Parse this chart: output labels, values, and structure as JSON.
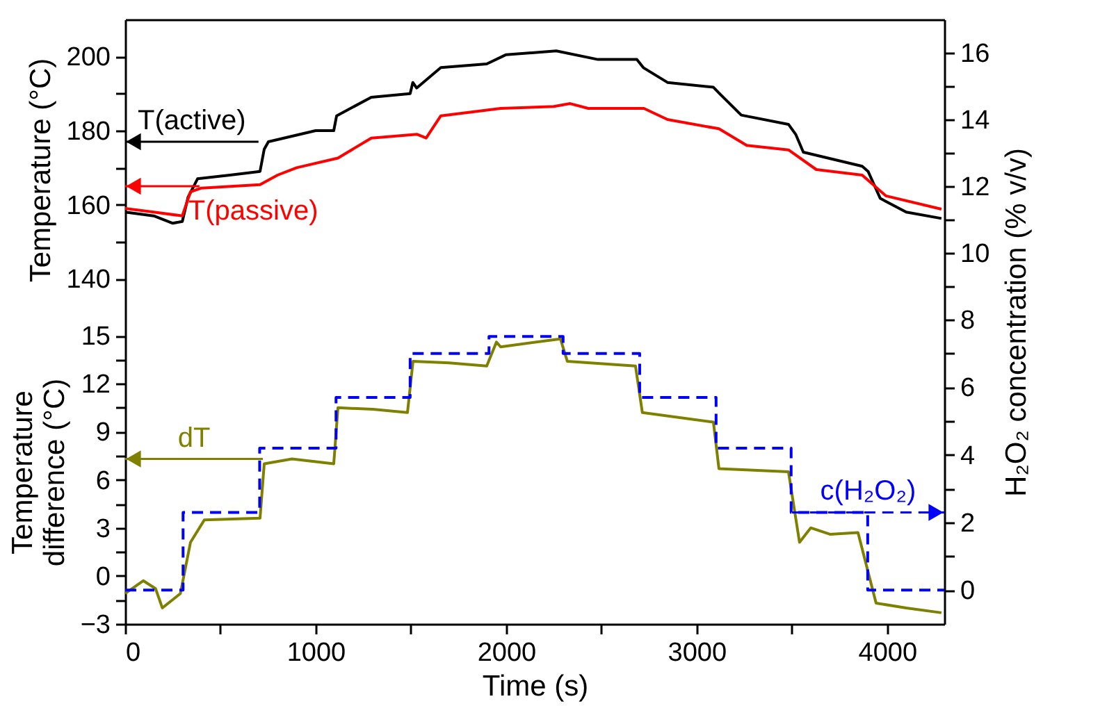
{
  "chart_data": [
    {
      "type": "line",
      "ylabel": "Temperature (°C)",
      "xlim": [
        0,
        4300
      ],
      "ylim": [
        129,
        210
      ],
      "yticks": [
        140,
        {
          "value": 150,
          "label": null
        },
        160,
        {
          "value": 170,
          "label": null
        },
        180,
        {
          "value": 190,
          "label": null
        },
        200
      ],
      "y2lim": [
        8,
        17
      ],
      "y2ticks": [
        {
          "value": 9,
          "label": null
        },
        10,
        {
          "value": 11,
          "label": null
        },
        12,
        {
          "value": 13,
          "label": null
        },
        14,
        {
          "value": 15,
          "label": null
        },
        16
      ],
      "tick_labels": "y",
      "grid": false,
      "marker": "none",
      "series": [
        {
          "color": "#000000",
          "x": [
            0,
            150,
            250,
            300,
            330,
            380,
            550,
            708,
            730,
            752,
            1000,
            1080,
            1095,
            1110,
            1292,
            1496,
            1510,
            1530,
            1657,
            1898,
            2000,
            2263,
            2482,
            2686,
            2720,
            2847,
            3088,
            3120,
            3234,
            3482,
            3520,
            3560,
            3869,
            3900,
            3964,
            4100,
            4285
          ],
          "values": [
            158,
            157,
            155,
            155.5,
            162,
            167,
            168,
            169,
            175,
            177,
            180,
            180,
            180,
            184,
            189,
            190,
            193,
            191.5,
            197,
            198,
            200.5,
            201.5,
            199.2,
            199.2,
            197,
            193,
            191.7,
            190,
            184.2,
            181.7,
            179,
            174.2,
            170.4,
            169,
            161.7,
            158,
            156.3
          ]
        },
        {
          "color": "#ff0000",
          "x": [
            0,
            150,
            300,
            343,
            400,
            708,
            800,
            900,
            1117,
            1292,
            1533,
            1580,
            1657,
            1971,
            2250,
            2336,
            2431,
            2723,
            2847,
            3117,
            3263,
            3482,
            3628,
            3869,
            3993,
            4285
          ],
          "values": [
            159,
            158,
            157,
            163.5,
            164.5,
            165.4,
            168,
            170,
            172.6,
            178,
            179,
            178,
            184,
            186,
            186.5,
            187.3,
            186,
            186,
            183,
            180.5,
            176,
            174.8,
            169.5,
            168,
            162.4,
            158.8
          ]
        }
      ],
      "annotations": [
        {
          "text": "T(active)",
          "x": 700,
          "y": 177
        },
        {
          "text": "T(passive)",
          "x": 390,
          "y": 165
        }
      ]
    },
    {
      "type": "line",
      "ylabel": "Temperature\ndifference (°C)",
      "xlabel": "Time (s)",
      "y2label": "H₂O₂ concentration (% v/v)",
      "xlim": [
        0,
        4300
      ],
      "xticks": [
        0,
        {
          "value": 500,
          "label": null
        },
        1000,
        {
          "value": 1500,
          "label": null
        },
        2000,
        {
          "value": 2500,
          "label": null
        },
        3000,
        {
          "value": 3500,
          "label": null
        },
        4000
      ],
      "ylim": [
        -3,
        16
      ],
      "yticks": [
        -3,
        {
          "value": -1.5,
          "label": null
        },
        0,
        {
          "value": 1.5,
          "label": null
        },
        3,
        {
          "value": 4.5,
          "label": null
        },
        6,
        {
          "value": 7.5,
          "label": null
        },
        9,
        {
          "value": 10.5,
          "label": null
        },
        12,
        {
          "value": 13.5,
          "label": null
        },
        15
      ],
      "y2lim": [
        -1,
        8
      ],
      "y2ticks": [
        0,
        {
          "value": 1,
          "label": null
        },
        2,
        {
          "value": 3,
          "label": null
        },
        4,
        {
          "value": 5,
          "label": null
        },
        6,
        {
          "value": 7,
          "label": null
        },
        8
      ],
      "grid": false,
      "marker": "none",
      "series": [
        {
          "color": "#808000",
          "x": [
            0,
            95,
            160,
            195,
            290,
            343,
            416,
            708,
            730,
            876,
            1095,
            1117,
            1300,
            1482,
            1511,
            1700,
            1898,
            1949,
            1971,
            2285,
            2321,
            2679,
            2715,
            3088,
            3117,
            3482,
            3540,
            3599,
            3700,
            3847,
            3942,
            4100,
            4285
          ],
          "values": [
            -1.1,
            -0.3,
            -0.8,
            -2,
            -1.1,
            2.1,
            3.5,
            3.6,
            7,
            7.3,
            7,
            10.5,
            10.4,
            10.2,
            13.4,
            13.3,
            13.1,
            14.6,
            14.3,
            14.8,
            13.4,
            13.1,
            10.2,
            9.6,
            6.7,
            6.5,
            2.1,
            3,
            2.6,
            2.7,
            -1.7,
            -2,
            -2.3
          ]
        },
        {
          "type": "step",
          "axis": "y2",
          "line_style": "dashed",
          "color": "#0000ff",
          "x": [
            0,
            304,
            706,
            1107,
            1496,
            1910,
            2299,
            2701,
            3102,
            3496,
            3898,
            4300
          ],
          "values": [
            0,
            2.3,
            4.2,
            5.7,
            7.0,
            7.5,
            7.0,
            5.7,
            4.2,
            2.3,
            0,
            0
          ]
        }
      ],
      "annotations": [
        {
          "text": "dT",
          "x": 723,
          "y": 7.3
        },
        {
          "text": "c(H₂O₂)",
          "x": 3500,
          "y": 2.3
        }
      ]
    }
  ]
}
